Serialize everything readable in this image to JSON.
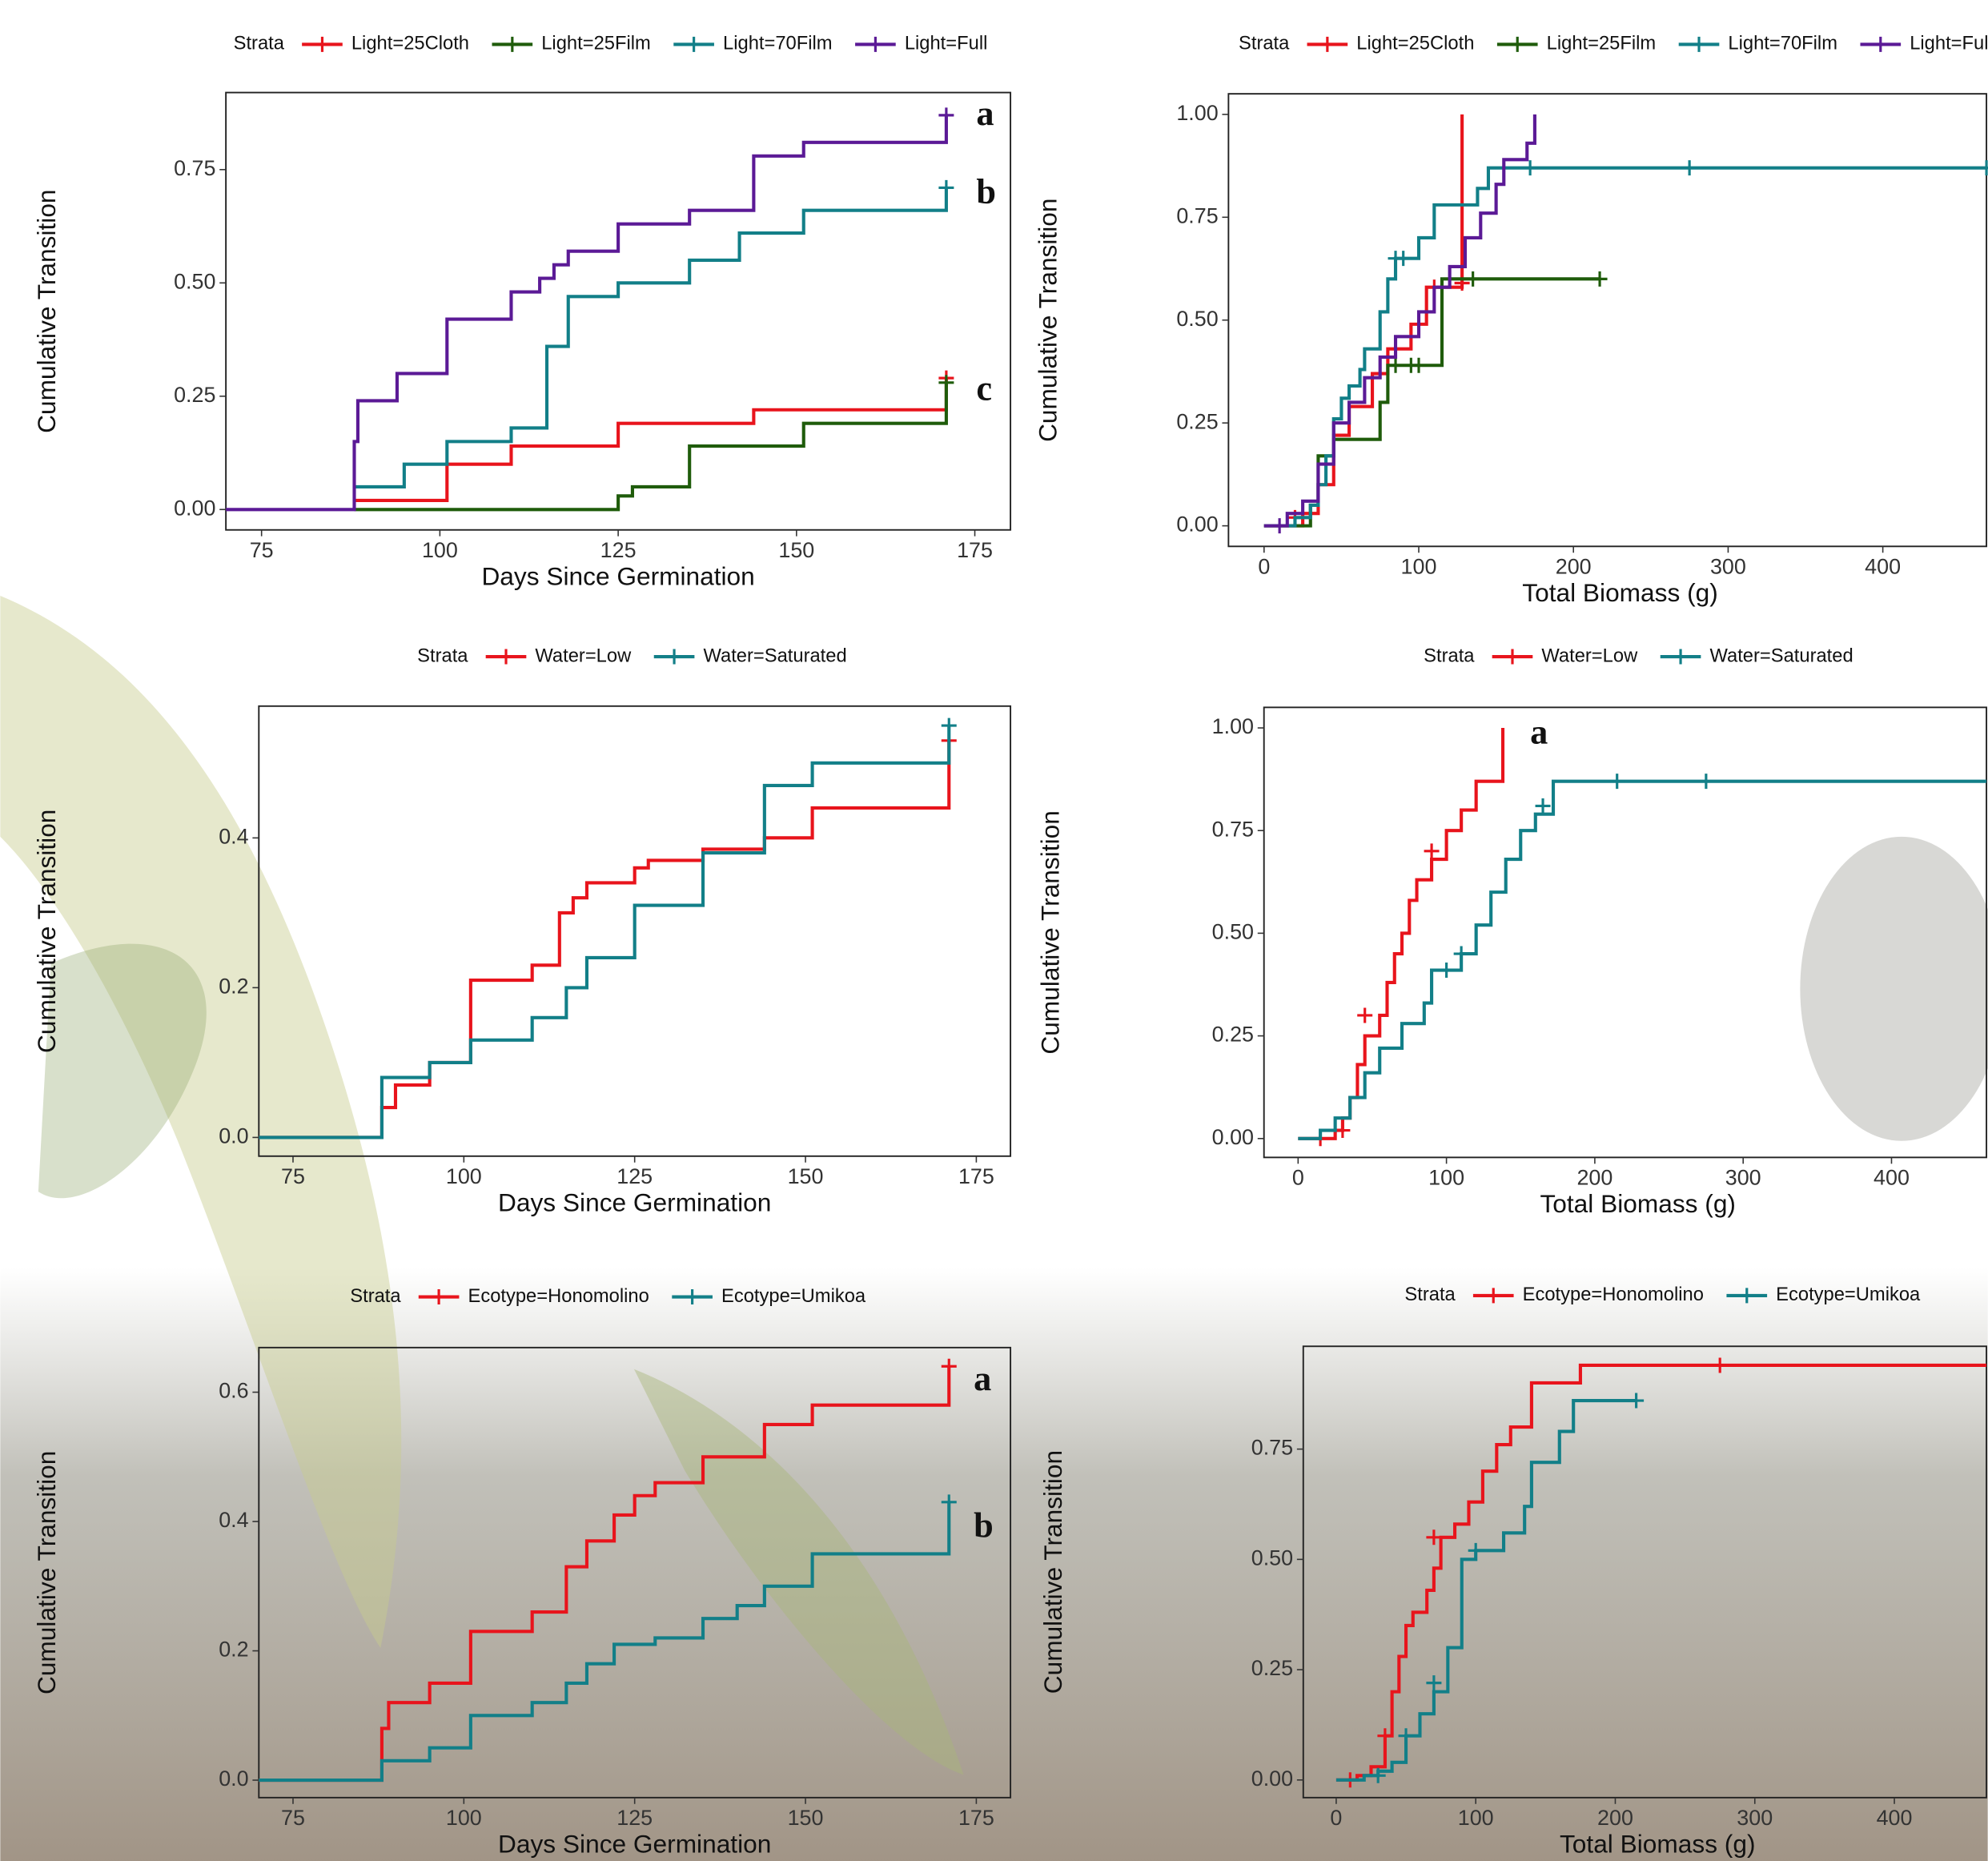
{
  "chart_data": [
    {
      "type": "step",
      "xlabel": "Days Since Germination",
      "ylabel": "Cumulative Transition",
      "legend_title": "Strata",
      "xlim": [
        70,
        180
      ],
      "ylim": [
        -0.045,
        0.92
      ],
      "xticks": [
        75,
        100,
        125,
        150,
        175
      ],
      "yticks": [
        {
          "value": 0,
          "label": "0.00"
        },
        0.25,
        {
          "value": 0.5,
          "label": "0.50"
        },
        0.75
      ],
      "annotations": [
        "a",
        "b",
        "c"
      ],
      "series": [
        {
          "name": "Light=25Cloth",
          "color": "#e8141c",
          "x": [
            88,
            101,
            110,
            125,
            144,
            171
          ],
          "values": [
            0.02,
            0.1,
            0.14,
            0.19,
            0.22,
            0.29
          ],
          "censor": [
            [
              171,
              0.29
            ]
          ]
        },
        {
          "name": "Light=25Film",
          "color": "#1f5c0b",
          "x": [
            88,
            125,
            127,
            135,
            151,
            171
          ],
          "values": [
            0,
            0.03,
            0.05,
            0.14,
            0.19,
            0.28
          ],
          "censor": [
            [
              171,
              0.28
            ]
          ]
        },
        {
          "name": "Light=70Film",
          "color": "#127f88",
          "x": [
            88,
            95,
            101,
            110,
            115,
            118,
            125,
            135,
            142,
            151,
            171
          ],
          "values": [
            0.05,
            0.1,
            0.15,
            0.18,
            0.36,
            0.47,
            0.5,
            0.55,
            0.61,
            0.66,
            0.71
          ],
          "censor": [
            [
              171,
              0.71
            ]
          ]
        },
        {
          "name": "Light=Full",
          "color": "#5b1a96",
          "x": [
            70,
            88,
            88.5,
            94,
            101,
            110,
            114,
            116,
            118,
            125,
            135,
            144,
            151,
            171
          ],
          "values": [
            0,
            0.15,
            0.24,
            0.3,
            0.42,
            0.48,
            0.51,
            0.54,
            0.57,
            0.63,
            0.66,
            0.78,
            0.81,
            0.87
          ],
          "censor": [
            [
              171,
              0.87
            ]
          ]
        }
      ]
    },
    {
      "type": "step",
      "xlabel": "Total Biomass (g)",
      "ylabel": "Cumulative Transition",
      "legend_title": "Strata",
      "xlim": [
        -23,
        467
      ],
      "ylim": [
        -0.05,
        1.05
      ],
      "xticks": [
        0,
        100,
        200,
        300,
        400
      ],
      "yticks": [
        {
          "value": 0,
          "label": "0.00"
        },
        0.25,
        {
          "value": 0.5,
          "label": "0.50"
        },
        0.75,
        {
          "value": 1,
          "label": "1.00"
        }
      ],
      "annotations": [],
      "series": [
        {
          "name": "Light=25Cloth",
          "color": "#e8141c",
          "x": [
            0,
            25,
            35,
            45,
            55,
            70,
            80,
            95,
            105,
            128
          ],
          "values": [
            0,
            0.03,
            0.1,
            0.22,
            0.29,
            0.37,
            0.43,
            0.49,
            0.58,
            1.0
          ],
          "censor": [
            [
              20,
              0.02
            ],
            [
              110,
              0.58
            ],
            [
              128,
              0.59
            ]
          ]
        },
        {
          "name": "Light=25Film",
          "color": "#1f5c0b",
          "x": [
            0,
            30,
            35,
            45,
            75,
            80,
            115,
            217
          ],
          "values": [
            0,
            0.05,
            0.17,
            0.21,
            0.3,
            0.39,
            0.6,
            0.6
          ],
          "censor": [
            [
              85,
              0.39
            ],
            [
              95,
              0.39
            ],
            [
              100,
              0.39
            ],
            [
              135,
              0.6
            ],
            [
              217,
              0.6
            ]
          ]
        },
        {
          "name": "Light=70Film",
          "color": "#127f88",
          "x": [
            0,
            20,
            30,
            35,
            40,
            45,
            50,
            55,
            62,
            65,
            75,
            80,
            85,
            100,
            110,
            138,
            145,
            467
          ],
          "values": [
            0,
            0.02,
            0.05,
            0.1,
            0.17,
            0.26,
            0.31,
            0.34,
            0.38,
            0.43,
            0.52,
            0.6,
            0.65,
            0.7,
            0.78,
            0.82,
            0.87,
            0.87
          ],
          "censor": [
            [
              85,
              0.65
            ],
            [
              90,
              0.65
            ],
            [
              172,
              0.87
            ],
            [
              275,
              0.87
            ],
            [
              467,
              0.87
            ]
          ]
        },
        {
          "name": "Light=Full",
          "color": "#5b1a96",
          "x": [
            0,
            15,
            25,
            35,
            45,
            55,
            65,
            75,
            85,
            100,
            110,
            120,
            130,
            140,
            150,
            155,
            170,
            175
          ],
          "values": [
            0,
            0.03,
            0.06,
            0.15,
            0.25,
            0.3,
            0.36,
            0.41,
            0.46,
            0.52,
            0.58,
            0.63,
            0.7,
            0.76,
            0.83,
            0.89,
            0.93,
            1.0
          ],
          "censor": [
            [
              10,
              0
            ]
          ]
        }
      ]
    },
    {
      "type": "step",
      "xlabel": "Days Since Germination",
      "ylabel": "Cumulative Transition",
      "legend_title": "Strata",
      "xlim": [
        70,
        180
      ],
      "ylim": [
        -0.025,
        0.576
      ],
      "xticks": [
        75,
        100,
        125,
        150,
        175
      ],
      "yticks": [
        {
          "value": 0,
          "label": "0.0"
        },
        0.2,
        0.4
      ],
      "annotations": [],
      "series": [
        {
          "name": "Water=Low",
          "color": "#e8141c",
          "x": [
            70,
            88,
            90,
            95,
            101,
            110,
            114,
            116,
            118,
            125,
            127,
            135,
            144,
            151,
            171
          ],
          "values": [
            0,
            0.04,
            0.07,
            0.1,
            0.21,
            0.23,
            0.3,
            0.32,
            0.34,
            0.36,
            0.37,
            0.385,
            0.4,
            0.44,
            0.53
          ],
          "censor": [
            [
              171,
              0.53
            ]
          ]
        },
        {
          "name": "Water=Saturated",
          "color": "#127f88",
          "x": [
            70,
            88,
            95,
            101,
            110,
            115,
            118,
            125,
            135,
            144,
            151,
            171
          ],
          "values": [
            0,
            0.08,
            0.1,
            0.13,
            0.16,
            0.2,
            0.24,
            0.31,
            0.38,
            0.47,
            0.5,
            0.55
          ],
          "censor": [
            [
              171,
              0.55
            ]
          ]
        }
      ]
    },
    {
      "type": "step",
      "xlabel": "Total Biomass (g)",
      "ylabel": "Cumulative Transition",
      "legend_title": "Strata",
      "xlim": [
        -23,
        464
      ],
      "ylim": [
        -0.046,
        1.05
      ],
      "xticks": [
        0,
        100,
        200,
        300,
        400
      ],
      "yticks": [
        {
          "value": 0,
          "label": "0.00"
        },
        0.25,
        {
          "value": 0.5,
          "label": "0.50"
        },
        0.75,
        {
          "value": 1,
          "label": "1.00"
        }
      ],
      "annotations": [
        "a"
      ],
      "series": [
        {
          "name": "Water=Low",
          "color": "#e8141c",
          "x": [
            0,
            25,
            30,
            35,
            40,
            45,
            55,
            60,
            65,
            70,
            75,
            80,
            90,
            100,
            110,
            120,
            138
          ],
          "values": [
            0,
            0.02,
            0.05,
            0.1,
            0.18,
            0.25,
            0.3,
            0.38,
            0.45,
            0.5,
            0.58,
            0.63,
            0.68,
            0.75,
            0.8,
            0.87,
            1.0
          ],
          "censor": [
            [
              15,
              0
            ],
            [
              30,
              0.02
            ],
            [
              45,
              0.3
            ],
            [
              90,
              0.7
            ]
          ]
        },
        {
          "name": "Water=Saturated",
          "color": "#127f88",
          "x": [
            0,
            15,
            25,
            35,
            45,
            55,
            70,
            85,
            90,
            110,
            120,
            130,
            140,
            150,
            160,
            172,
            464
          ],
          "values": [
            0,
            0.02,
            0.05,
            0.1,
            0.16,
            0.22,
            0.28,
            0.33,
            0.41,
            0.45,
            0.52,
            0.6,
            0.68,
            0.75,
            0.79,
            0.87,
            0.87
          ],
          "censor": [
            [
              100,
              0.41
            ],
            [
              110,
              0.45
            ],
            [
              165,
              0.81
            ],
            [
              215,
              0.87
            ],
            [
              275,
              0.87
            ]
          ]
        }
      ]
    },
    {
      "type": "step",
      "xlabel": "Days Since Germination",
      "ylabel": "Cumulative Transition",
      "legend_title": "Strata",
      "xlim": [
        70,
        180
      ],
      "ylim": [
        -0.027,
        0.669
      ],
      "xticks": [
        75,
        100,
        125,
        150,
        175
      ],
      "yticks": [
        {
          "value": 0,
          "label": "0.0"
        },
        0.2,
        0.4,
        0.6
      ],
      "annotations": [
        "a",
        "b"
      ],
      "series": [
        {
          "name": "Ecotype=Honomolino",
          "color": "#e8141c",
          "x": [
            70,
            88,
            89,
            95,
            101,
            110,
            115,
            118,
            122,
            125,
            128,
            135,
            144,
            151,
            171
          ],
          "values": [
            0,
            0.08,
            0.12,
            0.15,
            0.23,
            0.26,
            0.33,
            0.37,
            0.41,
            0.44,
            0.46,
            0.5,
            0.55,
            0.58,
            0.64
          ],
          "censor": [
            [
              171,
              0.64
            ]
          ]
        },
        {
          "name": "Ecotype=Umikoa",
          "color": "#127f88",
          "x": [
            70,
            88,
            95,
            101,
            110,
            115,
            118,
            122,
            128,
            135,
            140,
            144,
            151,
            171
          ],
          "values": [
            0,
            0.03,
            0.05,
            0.1,
            0.12,
            0.15,
            0.18,
            0.21,
            0.22,
            0.25,
            0.27,
            0.3,
            0.35,
            0.43
          ],
          "censor": [
            [
              171,
              0.43
            ]
          ]
        }
      ]
    },
    {
      "type": "step",
      "xlabel": "Total Biomass (g)",
      "ylabel": "Cumulative Transition",
      "legend_title": "Strata",
      "xlim": [
        -23.6,
        466
      ],
      "ylim": [
        -0.04,
        0.983
      ],
      "xticks": [
        0,
        100,
        200,
        300,
        400
      ],
      "yticks": [
        {
          "value": 0,
          "label": "0.00"
        },
        0.25,
        {
          "value": 0.5,
          "label": "0.50"
        },
        0.75
      ],
      "annotations": [],
      "series": [
        {
          "name": "Ecotype=Honomolino",
          "color": "#e8141c",
          "x": [
            0,
            15,
            25,
            35,
            40,
            45,
            50,
            55,
            65,
            70,
            75,
            85,
            95,
            105,
            115,
            125,
            140,
            175,
            466
          ],
          "values": [
            0,
            0.01,
            0.03,
            0.1,
            0.2,
            0.28,
            0.35,
            0.38,
            0.43,
            0.48,
            0.55,
            0.58,
            0.63,
            0.7,
            0.76,
            0.8,
            0.9,
            0.94,
            0.94
          ],
          "censor": [
            [
              10,
              0
            ],
            [
              35,
              0.1
            ],
            [
              70,
              0.55
            ],
            [
              275,
              0.94
            ]
          ]
        },
        {
          "name": "Ecotype=Umikoa",
          "color": "#127f88",
          "x": [
            0,
            20,
            30,
            40,
            50,
            60,
            70,
            80,
            90,
            100,
            120,
            135,
            140,
            160,
            170,
            215
          ],
          "values": [
            0,
            0.01,
            0.02,
            0.04,
            0.1,
            0.15,
            0.2,
            0.3,
            0.5,
            0.52,
            0.56,
            0.62,
            0.72,
            0.79,
            0.86,
            0.86
          ],
          "censor": [
            [
              30,
              0.01
            ],
            [
              50,
              0.1
            ],
            [
              70,
              0.22
            ],
            [
              100,
              0.52
            ],
            [
              215,
              0.86
            ]
          ]
        }
      ]
    }
  ]
}
